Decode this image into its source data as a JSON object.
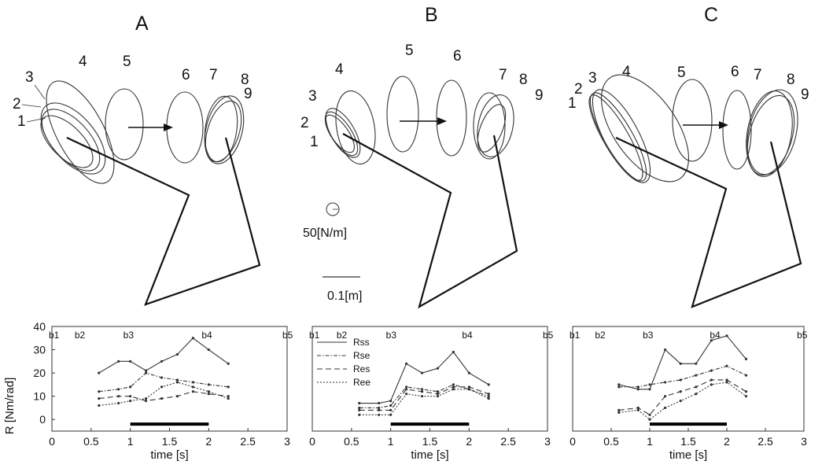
{
  "figure": {
    "panels": [
      {
        "letter": "A",
        "ellipse_numbers": [
          "1",
          "2",
          "3",
          "4",
          "5",
          "6",
          "7",
          "8",
          "9"
        ]
      },
      {
        "letter": "B",
        "ellipse_numbers": [
          "1",
          "2",
          "3",
          "4",
          "5",
          "6",
          "7",
          "8",
          "9"
        ]
      },
      {
        "letter": "C",
        "ellipse_numbers": [
          "1",
          "2",
          "3",
          "4",
          "5",
          "6",
          "7",
          "8",
          "9"
        ]
      }
    ],
    "stiffness_scale_label": "50[N/m]",
    "length_scale_label": "0.1[m]"
  },
  "chart_data": [
    {
      "type": "line",
      "panel": "A",
      "ylabel": "R [Nm/rad]",
      "xlabel": "time [s]",
      "xlim": [
        0,
        3
      ],
      "ylim": [
        -5,
        40
      ],
      "xticks": [
        "0",
        "0.5",
        "1",
        "1.5",
        "2",
        "2.5",
        "3"
      ],
      "yticks": [
        "0",
        "10",
        "20",
        "30",
        "40"
      ],
      "phase_labels": [
        "b1",
        "b2",
        "b3",
        "b4",
        "b5"
      ],
      "phase_times": [
        0,
        0.33,
        0.95,
        1.95,
        3.0
      ],
      "movement_bar": [
        1.0,
        2.0
      ],
      "x": [
        0.6,
        0.85,
        1.0,
        1.2,
        1.4,
        1.6,
        1.8,
        2.0,
        2.25
      ],
      "series": [
        {
          "name": "Rss",
          "values": [
            20,
            25,
            25,
            21,
            25,
            28,
            35,
            30,
            24
          ]
        },
        {
          "name": "Rse",
          "values": [
            12,
            13,
            14,
            20,
            18,
            17,
            16,
            15,
            14
          ]
        },
        {
          "name": "Res",
          "values": [
            9,
            10,
            10,
            8,
            9,
            10,
            12,
            11,
            10
          ]
        },
        {
          "name": "Ree",
          "values": [
            6,
            7,
            8,
            9,
            14,
            16,
            14,
            12,
            9
          ]
        }
      ]
    },
    {
      "type": "line",
      "panel": "B",
      "ylabel": "",
      "xlabel": "time [s]",
      "xlim": [
        0,
        3
      ],
      "ylim": [
        -5,
        40
      ],
      "xticks": [
        "0",
        "0.5",
        "1",
        "1.5",
        "2",
        "2.5",
        "3"
      ],
      "yticks": [],
      "phase_labels": [
        "b1",
        "b2",
        "b3",
        "b4",
        "b5"
      ],
      "phase_times": [
        0,
        0.35,
        0.98,
        1.95,
        3.0
      ],
      "movement_bar": [
        1.0,
        2.0
      ],
      "legend": [
        "Rss",
        "Rse",
        "Res",
        "Ree"
      ],
      "legend_position": "top-left",
      "x": [
        0.6,
        0.85,
        1.0,
        1.2,
        1.4,
        1.6,
        1.8,
        2.0,
        2.25
      ],
      "series": [
        {
          "name": "Rss",
          "values": [
            7,
            7,
            8,
            24,
            20,
            22,
            29,
            20,
            15
          ]
        },
        {
          "name": "Rse",
          "values": [
            5,
            5,
            6,
            14,
            13,
            12,
            15,
            13,
            10
          ]
        },
        {
          "name": "Res",
          "values": [
            4,
            4,
            4,
            13,
            12,
            11,
            14,
            14,
            11
          ]
        },
        {
          "name": "Ree",
          "values": [
            2,
            2,
            2,
            11,
            10,
            10,
            13,
            13,
            9
          ]
        }
      ]
    },
    {
      "type": "line",
      "panel": "C",
      "ylabel": "",
      "xlabel": "time [s]",
      "xlim": [
        0,
        3
      ],
      "ylim": [
        -5,
        40
      ],
      "xticks": [
        "0",
        "0.5",
        "1",
        "1.5",
        "2",
        "2.5",
        "3"
      ],
      "yticks": [],
      "phase_labels": [
        "b1",
        "b2",
        "b3",
        "b4",
        "b5"
      ],
      "phase_times": [
        0,
        0.33,
        0.95,
        1.82,
        2.95
      ],
      "movement_bar": [
        1.0,
        2.0
      ],
      "x": [
        0.6,
        0.85,
        1.0,
        1.2,
        1.4,
        1.6,
        1.8,
        2.0,
        2.25
      ],
      "series": [
        {
          "name": "Rss",
          "values": [
            15,
            13,
            13,
            30,
            24,
            24,
            34,
            36,
            26
          ]
        },
        {
          "name": "Rse",
          "values": [
            14,
            14,
            15,
            16,
            17,
            19,
            21,
            23,
            19
          ]
        },
        {
          "name": "Res",
          "values": [
            4,
            5,
            2,
            10,
            12,
            14,
            17,
            17,
            12
          ]
        },
        {
          "name": "Ree",
          "values": [
            3,
            4,
            0,
            5,
            8,
            11,
            15,
            16,
            10
          ]
        }
      ]
    }
  ]
}
